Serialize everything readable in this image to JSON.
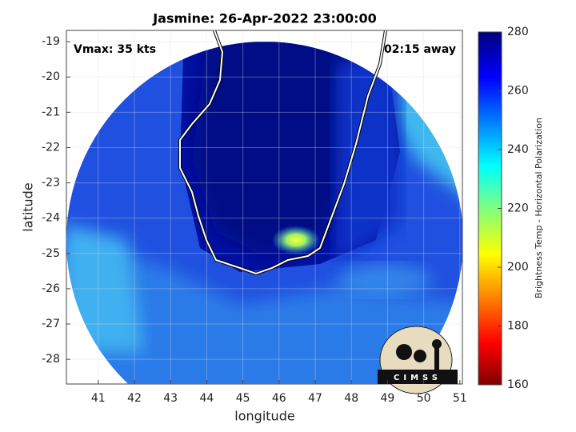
{
  "chart_data": {
    "type": "map",
    "title": "Jasmine: 26-Apr-2022 23:00:00",
    "annotations": [
      "Vmax: 35 kts",
      "02:15 away"
    ],
    "xlabel": "longitude",
    "ylabel": "latitude",
    "xlim": [
      40.12,
      51.07
    ],
    "xticks": [
      41,
      42,
      43,
      44,
      45,
      46,
      47,
      48,
      49,
      50,
      51
    ],
    "ylim": [
      -28.7,
      -18.68
    ],
    "yticks": [
      -19,
      -20,
      -21,
      -22,
      -23,
      -24,
      -25,
      -26,
      -27,
      -28
    ],
    "colorbar_label": "Brightness Temp - Horizontal Polarization",
    "clim": [
      160,
      280
    ],
    "cticks": [
      160,
      180,
      200,
      220,
      240,
      260,
      280
    ],
    "grid": true,
    "logo_text": "CIMSS"
  }
}
